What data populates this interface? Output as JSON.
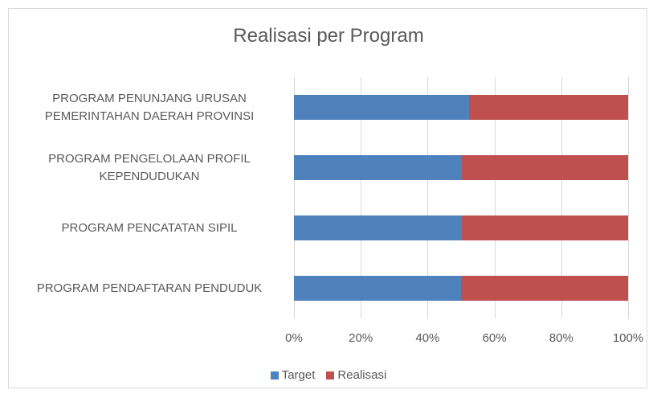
{
  "chart_data": {
    "type": "bar",
    "orientation": "horizontal",
    "stacked": true,
    "title": "Realisasi per Program",
    "categories": [
      "PROGRAM PENUNJANG URUSAN PEMERINTAHAN DAERAH PROVINSI",
      "PROGRAM PENGELOLAAN PROFIL KEPENDUDUKAN",
      "PROGRAM PENCATATAN SIPIL",
      "PROGRAM PENDAFTARAN PENDUDUK"
    ],
    "series": [
      {
        "name": "Target",
        "color": "#4f81bd",
        "values": [
          52.4,
          50.2,
          50.2,
          50.0
        ]
      },
      {
        "name": "Realisasi",
        "color": "#c0504d",
        "values": [
          47.6,
          49.8,
          49.8,
          50.0
        ]
      }
    ],
    "xlim": [
      0,
      100
    ],
    "xticks": [
      {
        "value": 0,
        "label": "0%"
      },
      {
        "value": 20,
        "label": "20%"
      },
      {
        "value": 40,
        "label": "40%"
      },
      {
        "value": 60,
        "label": "60%"
      },
      {
        "value": 80,
        "label": "80%"
      },
      {
        "value": 100,
        "label": "100%"
      }
    ],
    "grid": true,
    "legend": "bottom"
  }
}
